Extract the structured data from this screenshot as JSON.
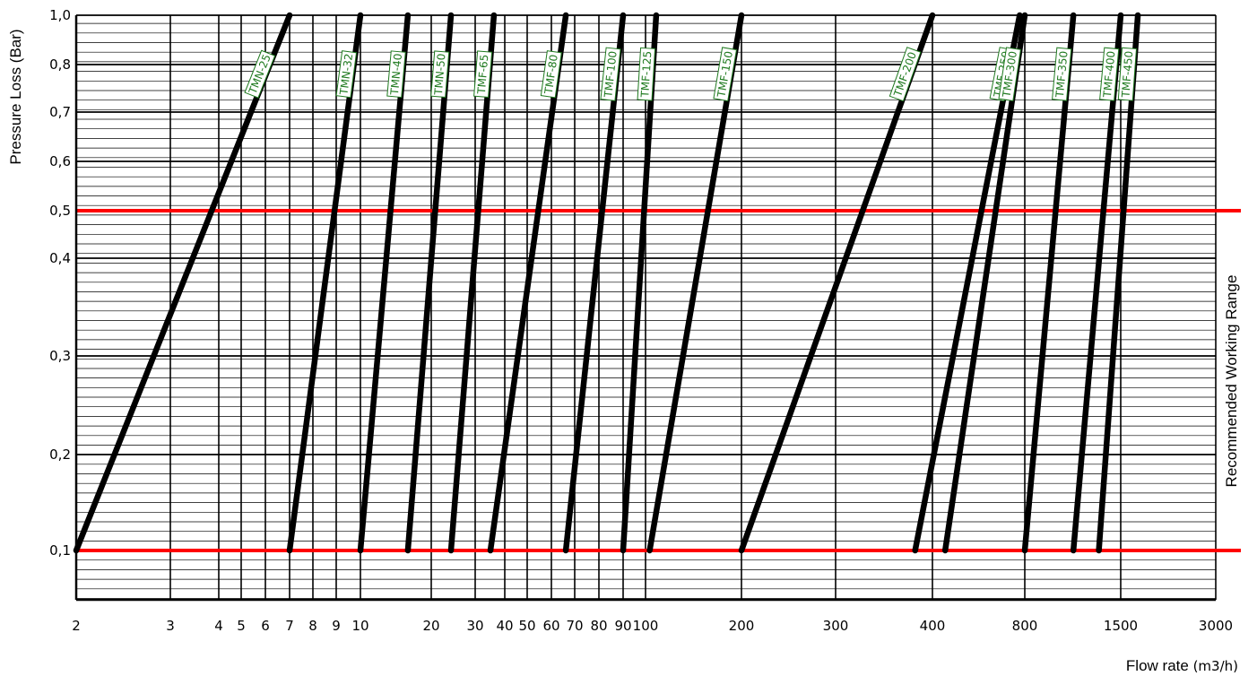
{
  "chart_data": {
    "type": "line",
    "title": "",
    "xlabel": "Flow rate",
    "xlabel_unit": "(m3/h)",
    "ylabel": "Pressure Loss (Bar)",
    "side_label": "Recommended Working Range",
    "x_tick_labels": [
      "2",
      "3",
      "4",
      "5",
      "6",
      "7",
      "8",
      "9",
      "10",
      "20",
      "30",
      "40",
      "50",
      "60",
      "70",
      "80",
      "90",
      "100",
      "200",
      "300",
      "400",
      "800",
      "1500",
      "3000"
    ],
    "y_tick_labels": [
      "0,1",
      "0,2",
      "0,3",
      "0,4",
      "0,5",
      "0,6",
      "0,7",
      "0,8",
      "1,0"
    ],
    "y_tick_values": [
      0.1,
      0.2,
      0.3,
      0.4,
      0.5,
      0.6,
      0.7,
      0.8,
      1.0
    ],
    "ylim": [
      0.05,
      1.0
    ],
    "grid": true,
    "reference_lines": [
      {
        "y": 0.5,
        "color": "#ff0000"
      },
      {
        "y": 0.1,
        "color": "#ff0000"
      }
    ],
    "colors": {
      "series": "#000000",
      "labels": "#1f7a1f",
      "reference": "#ff0000",
      "grid": "#000000"
    },
    "series": [
      {
        "name": "TMN-25",
        "x_at_0_1": "2",
        "x_at_1_0": "7"
      },
      {
        "name": "TMN-32",
        "x_at_0_1": "7",
        "x_at_1_0": "10"
      },
      {
        "name": "TMN-40",
        "x_at_0_1": "10",
        "x_at_1_0": "15.9"
      },
      {
        "name": "TMN-50",
        "x_at_0_1": "15.9",
        "x_at_1_0": "24"
      },
      {
        "name": "TMF-65",
        "x_at_0_1": "24",
        "x_at_1_0": "36"
      },
      {
        "name": "TMF-80",
        "x_at_0_1": "34.8",
        "x_at_1_0": "66"
      },
      {
        "name": "TMF-100",
        "x_at_0_1": "66",
        "x_at_1_0": "90"
      },
      {
        "name": "TMF-125",
        "x_at_0_1": "90",
        "x_at_1_0": "108"
      },
      {
        "name": "TMF-150",
        "x_at_0_1": "103",
        "x_at_1_0": "200"
      },
      {
        "name": "TMF-200",
        "x_at_0_1": "200",
        "x_at_1_0": "400"
      },
      {
        "name": "TMF-250",
        "x_at_0_1": "380",
        "x_at_1_0": "770"
      },
      {
        "name": "TMF-300",
        "x_at_0_1": "440",
        "x_at_1_0": "800"
      },
      {
        "name": "TMF-350",
        "x_at_0_1": "800",
        "x_at_1_0": "1100"
      },
      {
        "name": "TMF-400",
        "x_at_0_1": "1100",
        "x_at_1_0": "1500"
      },
      {
        "name": "TMF-450",
        "x_at_0_1": "1300",
        "x_at_1_0": "1700"
      }
    ]
  }
}
